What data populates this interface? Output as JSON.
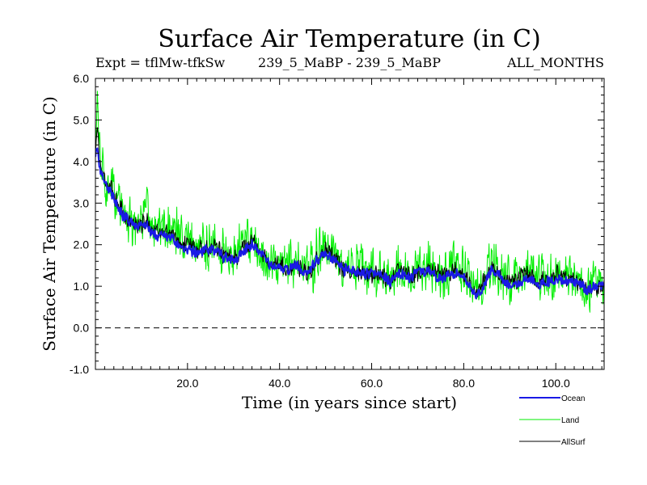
{
  "chart_data": {
    "type": "line",
    "title": "Surface Air Temperature (in C)",
    "subtitle_left": "Expt = tflMw-tfkSw",
    "subtitle_center": "239_5_MaBP - 239_5_MaBP",
    "subtitle_right": "ALL_MONTHS",
    "xlabel": "Time (in years since start)",
    "ylabel": "Surface Air Temperature (in C)",
    "xlim": [
      0,
      110.5
    ],
    "ylim": [
      -1.0,
      6.0
    ],
    "x_ticks": [
      {
        "value": 20,
        "label": "20.0"
      },
      {
        "value": 40,
        "label": "40.0"
      },
      {
        "value": 60,
        "label": "60.0"
      },
      {
        "value": 80,
        "label": "80.0"
      },
      {
        "value": 100,
        "label": "100.0"
      }
    ],
    "y_ticks": [
      {
        "value": -1,
        "label": "-1.0"
      },
      {
        "value": 0,
        "label": "0.0"
      },
      {
        "value": 1,
        "label": "1.0"
      },
      {
        "value": 2,
        "label": "2.0"
      },
      {
        "value": 3,
        "label": "3.0"
      },
      {
        "value": 4,
        "label": "4.0"
      },
      {
        "value": 5,
        "label": "5.0"
      },
      {
        "value": 6,
        "label": "6.0"
      }
    ],
    "zero_line": {
      "value": 0.0,
      "style": "dashed"
    },
    "series": [
      {
        "name": "Land",
        "color": "#00ee00",
        "x": [
          0,
          0.4,
          1,
          2,
          3,
          4,
          5,
          6,
          7,
          8,
          9,
          10,
          11,
          12,
          14,
          16,
          18,
          20,
          22,
          24,
          26,
          28,
          30,
          32,
          34,
          36,
          38,
          40,
          42,
          44,
          46,
          48,
          50,
          52,
          54,
          56,
          58,
          60,
          62,
          64,
          66,
          68,
          70,
          72,
          74,
          76,
          78,
          80,
          82,
          83,
          84,
          86,
          88,
          90,
          92,
          94,
          96,
          98,
          100,
          102,
          104,
          106,
          107,
          108,
          110,
          110.5
        ],
        "center": [
          4.4,
          5.6,
          4.0,
          3.6,
          3.5,
          3.3,
          3.0,
          2.8,
          2.7,
          2.6,
          2.6,
          2.6,
          2.8,
          2.5,
          2.4,
          2.4,
          2.2,
          2.1,
          2.0,
          2.0,
          2.1,
          1.8,
          1.7,
          2.0,
          2.2,
          1.9,
          1.6,
          1.6,
          1.5,
          1.6,
          1.3,
          1.7,
          2.0,
          1.7,
          1.4,
          1.5,
          1.4,
          1.4,
          1.4,
          1.1,
          1.5,
          1.3,
          1.4,
          1.5,
          1.3,
          1.3,
          1.5,
          1.3,
          1.0,
          0.9,
          1.0,
          1.6,
          1.3,
          1.1,
          1.2,
          1.3,
          1.1,
          1.2,
          1.3,
          1.2,
          1.2,
          1.0,
          0.9,
          1.1,
          1.0,
          1.1
        ],
        "amp": [
          0.8,
          0.2,
          0.7,
          0.8,
          0.7,
          0.7,
          0.7,
          0.7,
          0.7,
          0.7,
          0.7,
          0.7,
          0.7,
          0.7,
          0.7,
          0.7,
          0.7,
          0.7,
          0.7,
          0.7,
          0.7,
          0.7,
          0.7,
          0.7,
          0.7,
          0.7,
          0.7,
          0.7,
          0.7,
          0.7,
          0.8,
          0.7,
          0.7,
          0.7,
          0.7,
          0.7,
          0.7,
          0.7,
          0.7,
          0.7,
          0.7,
          0.7,
          0.7,
          0.7,
          0.7,
          0.7,
          0.7,
          0.7,
          0.7,
          0.8,
          0.7,
          0.7,
          0.7,
          0.7,
          0.7,
          0.7,
          0.7,
          0.7,
          0.7,
          0.7,
          0.7,
          0.7,
          0.8,
          0.7,
          0.7,
          0.7
        ]
      },
      {
        "name": "AllSurf",
        "color": "#000000",
        "x": [
          0,
          0.4,
          1,
          2,
          3,
          4,
          5,
          6,
          7,
          8,
          9,
          10,
          11,
          12,
          14,
          16,
          18,
          20,
          22,
          24,
          26,
          28,
          30,
          32,
          34,
          36,
          38,
          40,
          42,
          44,
          46,
          48,
          50,
          52,
          54,
          56,
          58,
          60,
          62,
          64,
          66,
          68,
          70,
          72,
          74,
          76,
          78,
          80,
          82,
          83,
          84,
          86,
          88,
          90,
          92,
          94,
          96,
          98,
          100,
          102,
          104,
          106,
          107,
          108,
          110,
          110.5
        ],
        "center": [
          4.2,
          4.9,
          3.9,
          3.6,
          3.4,
          3.2,
          3.0,
          2.8,
          2.6,
          2.5,
          2.5,
          2.5,
          2.6,
          2.4,
          2.3,
          2.3,
          2.1,
          2.0,
          1.9,
          1.9,
          2.0,
          1.7,
          1.6,
          1.9,
          2.1,
          1.8,
          1.6,
          1.5,
          1.4,
          1.5,
          1.3,
          1.6,
          1.9,
          1.6,
          1.4,
          1.4,
          1.3,
          1.3,
          1.3,
          1.1,
          1.4,
          1.3,
          1.3,
          1.4,
          1.3,
          1.3,
          1.4,
          1.3,
          0.9,
          0.8,
          1.0,
          1.5,
          1.3,
          1.1,
          1.2,
          1.3,
          1.1,
          1.2,
          1.3,
          1.2,
          1.2,
          1.0,
          0.9,
          1.0,
          1.0,
          1.1
        ],
        "amp": [
          0.25,
          0.1,
          0.25,
          0.25,
          0.25,
          0.25,
          0.25,
          0.25,
          0.25,
          0.25,
          0.25,
          0.25,
          0.25,
          0.25,
          0.25,
          0.25,
          0.25,
          0.25,
          0.25,
          0.25,
          0.25,
          0.25,
          0.25,
          0.25,
          0.25,
          0.25,
          0.25,
          0.25,
          0.25,
          0.25,
          0.25,
          0.25,
          0.25,
          0.25,
          0.25,
          0.25,
          0.25,
          0.25,
          0.25,
          0.25,
          0.25,
          0.25,
          0.25,
          0.25,
          0.25,
          0.25,
          0.25,
          0.25,
          0.25,
          0.25,
          0.25,
          0.25,
          0.25,
          0.25,
          0.25,
          0.25,
          0.25,
          0.25,
          0.25,
          0.25,
          0.25,
          0.25,
          0.25,
          0.25,
          0.25,
          0.25
        ]
      },
      {
        "name": "Ocean",
        "color": "#1a1ae6",
        "x": [
          0,
          0.4,
          1,
          2,
          3,
          4,
          5,
          6,
          7,
          8,
          9,
          10,
          11,
          12,
          14,
          16,
          18,
          20,
          22,
          24,
          26,
          28,
          30,
          32,
          34,
          36,
          38,
          40,
          42,
          44,
          46,
          48,
          50,
          52,
          54,
          56,
          58,
          60,
          62,
          64,
          66,
          68,
          70,
          72,
          74,
          76,
          78,
          80,
          82,
          83,
          84,
          86,
          88,
          90,
          92,
          94,
          96,
          98,
          100,
          102,
          104,
          106,
          107,
          108,
          110,
          110.5
        ],
        "center": [
          4.1,
          4.4,
          3.8,
          3.5,
          3.3,
          3.1,
          2.9,
          2.7,
          2.6,
          2.5,
          2.4,
          2.5,
          2.5,
          2.3,
          2.2,
          2.2,
          2.0,
          1.9,
          1.8,
          1.9,
          1.9,
          1.7,
          1.6,
          1.8,
          2.0,
          1.8,
          1.5,
          1.5,
          1.4,
          1.5,
          1.3,
          1.6,
          1.8,
          1.6,
          1.4,
          1.4,
          1.3,
          1.3,
          1.3,
          1.1,
          1.3,
          1.2,
          1.3,
          1.4,
          1.2,
          1.2,
          1.3,
          1.2,
          0.9,
          0.8,
          0.9,
          1.4,
          1.2,
          1.0,
          1.1,
          1.2,
          1.0,
          1.1,
          1.2,
          1.1,
          1.1,
          1.0,
          0.9,
          1.0,
          1.0,
          1.1
        ],
        "amp": [
          0.15,
          0.1,
          0.15,
          0.15,
          0.15,
          0.15,
          0.15,
          0.15,
          0.15,
          0.15,
          0.15,
          0.15,
          0.15,
          0.15,
          0.15,
          0.15,
          0.15,
          0.15,
          0.15,
          0.15,
          0.15,
          0.15,
          0.15,
          0.15,
          0.15,
          0.15,
          0.15,
          0.15,
          0.15,
          0.15,
          0.15,
          0.15,
          0.15,
          0.15,
          0.15,
          0.15,
          0.15,
          0.15,
          0.15,
          0.15,
          0.15,
          0.15,
          0.15,
          0.15,
          0.15,
          0.15,
          0.15,
          0.15,
          0.15,
          0.15,
          0.15,
          0.15,
          0.15,
          0.15,
          0.15,
          0.15,
          0.15,
          0.15,
          0.15,
          0.15,
          0.15,
          0.15,
          0.15,
          0.15,
          0.15,
          0.15
        ]
      }
    ],
    "legend": [
      {
        "name": "Ocean",
        "label": "Ocean",
        "color": "#1a1ae6"
      },
      {
        "name": "Land",
        "label": "Land",
        "color": "#00ee00"
      },
      {
        "name": "AllSurf",
        "label": "AllSurf",
        "color": "#000000"
      }
    ],
    "legend_position": "bottom-right",
    "grid": false
  }
}
